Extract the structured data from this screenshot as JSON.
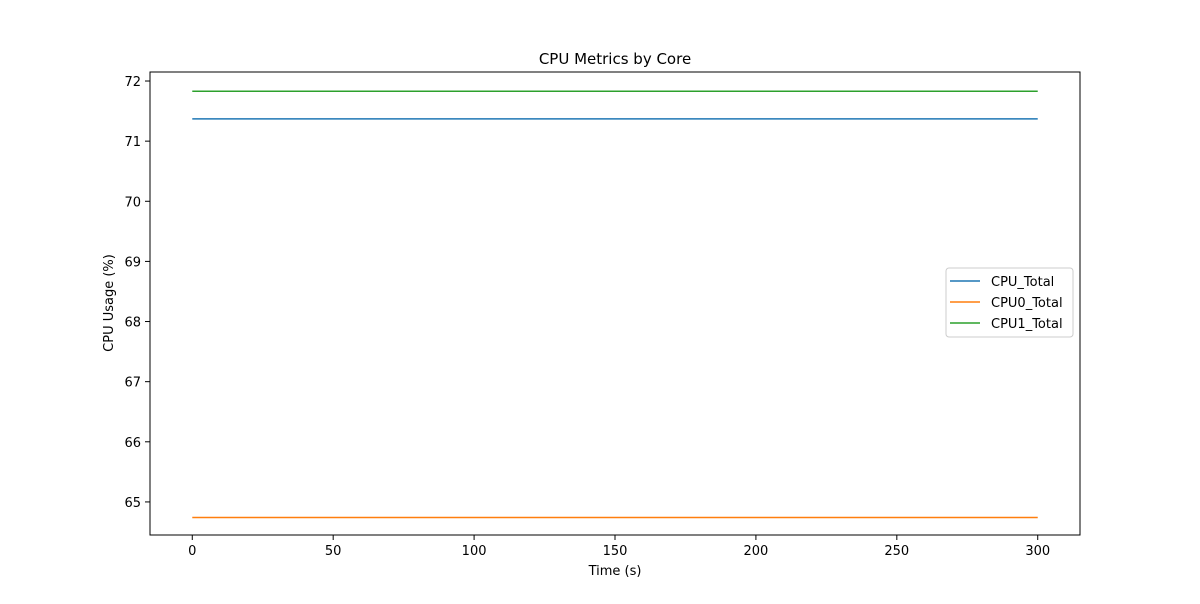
{
  "chart_data": {
    "type": "line",
    "title": "CPU Metrics by Core",
    "xlabel": "Time (s)",
    "ylabel": "CPU Usage (%)",
    "xlim": [
      -15,
      315
    ],
    "ylim": [
      64.45,
      72.15
    ],
    "xticks": [
      0,
      50,
      100,
      150,
      200,
      250,
      300
    ],
    "yticks": [
      65,
      66,
      67,
      68,
      69,
      70,
      71,
      72
    ],
    "grid": false,
    "legend_position": "center-right",
    "series": [
      {
        "name": "CPU_Total",
        "color": "#1f77b4",
        "x": [
          0,
          300
        ],
        "y": [
          71.37,
          71.37
        ]
      },
      {
        "name": "CPU0_Total",
        "color": "#ff7f0e",
        "x": [
          0,
          300
        ],
        "y": [
          64.74,
          64.74
        ]
      },
      {
        "name": "CPU1_Total",
        "color": "#2ca02c",
        "x": [
          0,
          300
        ],
        "y": [
          71.83,
          71.83
        ]
      }
    ]
  }
}
